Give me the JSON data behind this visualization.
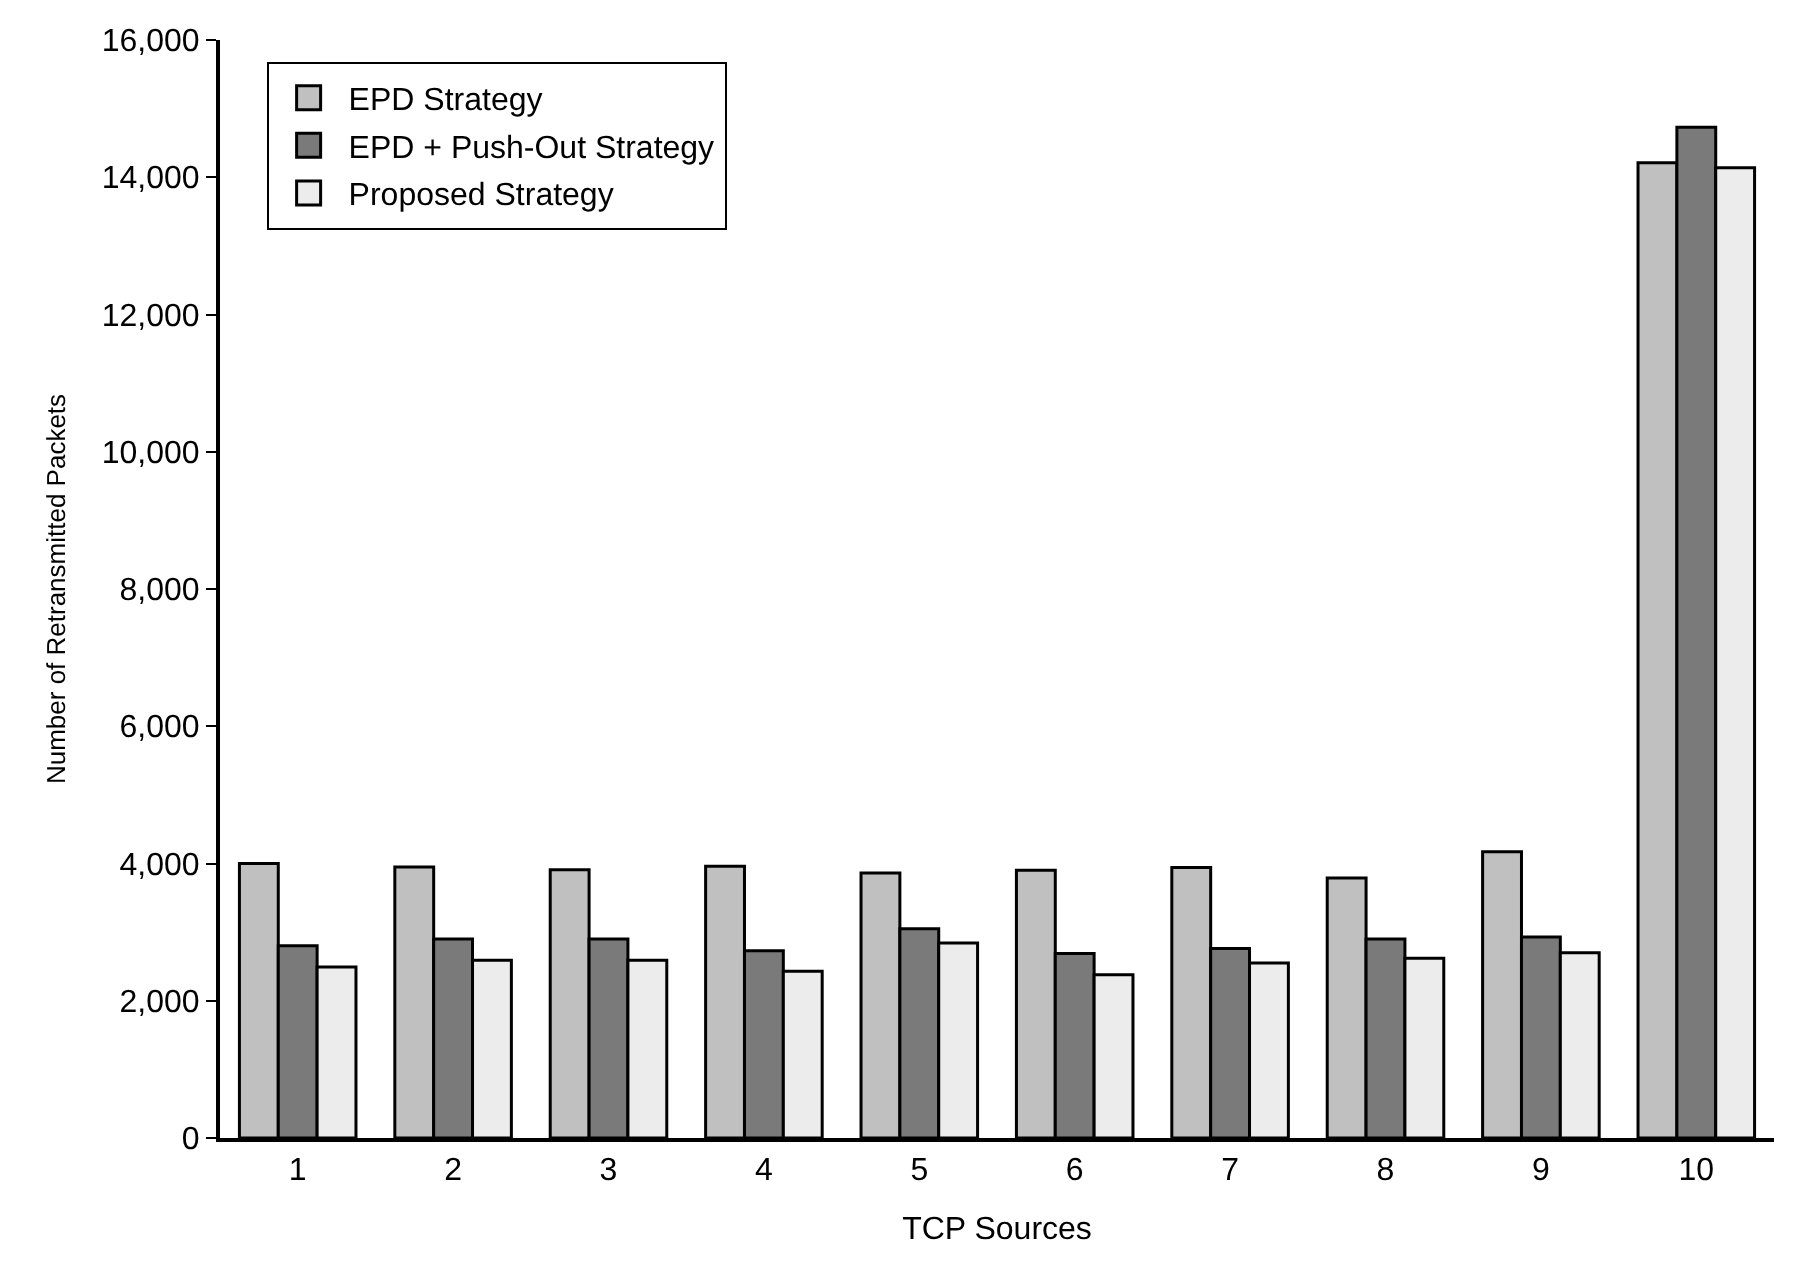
{
  "chart_data": {
    "type": "bar",
    "xlabel": "TCP Sources",
    "ylabel": "Number of Retransmitted Packets",
    "categories": [
      "1",
      "2",
      "3",
      "4",
      "5",
      "6",
      "7",
      "8",
      "9",
      "10"
    ],
    "series": [
      {
        "name": "EPD Strategy",
        "color": "#c0c0c0",
        "values": [
          4000,
          3950,
          3910,
          3960,
          3860,
          3900,
          3940,
          3790,
          4170,
          14210
        ]
      },
      {
        "name": "EPD + Push-Out Strategy",
        "color": "#7a7a7a",
        "values": [
          2800,
          2900,
          2900,
          2730,
          3050,
          2690,
          2760,
          2900,
          2930,
          14730
        ]
      },
      {
        "name": "Proposed Strategy",
        "color": "#ececec",
        "values": [
          2490,
          2590,
          2590,
          2430,
          2840,
          2380,
          2550,
          2620,
          2700,
          14140
        ]
      }
    ],
    "ylim": [
      0,
      16000
    ],
    "yticks": [
      {
        "value": 0,
        "label": "0"
      },
      {
        "value": 2000,
        "label": "2,000"
      },
      {
        "value": 4000,
        "label": "4,000"
      },
      {
        "value": 6000,
        "label": "6,000"
      },
      {
        "value": 8000,
        "label": "8,000"
      },
      {
        "value": 10000,
        "label": "10,000"
      },
      {
        "value": 12000,
        "label": "12,000"
      },
      {
        "value": 14000,
        "label": "14,000"
      },
      {
        "value": 16000,
        "label": "16,000"
      }
    ],
    "legend": "top left"
  }
}
